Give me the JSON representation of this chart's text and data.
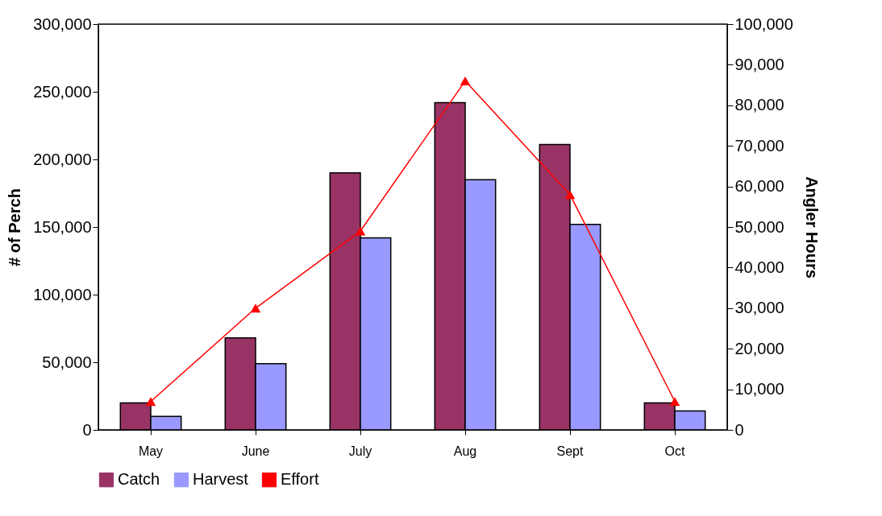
{
  "chart_data": {
    "type": "bar",
    "ylabel": "# of Perch",
    "y2label": "Angler Hours",
    "categories": [
      "May",
      "June",
      "July",
      "Aug",
      "Sept",
      "Oct"
    ],
    "series": [
      {
        "name": "Catch",
        "color": "#993366",
        "values": [
          20000,
          68000,
          190000,
          242000,
          211000,
          20000
        ]
      },
      {
        "name": "Harvest",
        "color": "#9999ff",
        "values": [
          10000,
          49000,
          142000,
          185000,
          152000,
          14000
        ]
      },
      {
        "name": "Effort",
        "type": "line",
        "axis": "y2",
        "color": "#ff0000",
        "values": [
          7000,
          30000,
          49000,
          86000,
          58000,
          7000
        ]
      }
    ],
    "ylim": [
      0,
      300000
    ],
    "yticks": [
      0,
      {
        "value": 50000,
        "label": "50,000"
      },
      {
        "value": 100000,
        "label": "100,000"
      },
      {
        "value": 150000,
        "label": "150,000"
      },
      {
        "value": 200000,
        "label": "200,000"
      },
      {
        "value": 250000,
        "label": "250,000"
      },
      {
        "value": 300000,
        "label": "300,000"
      }
    ],
    "y2lim": [
      0,
      100000
    ],
    "y2ticks": [
      0,
      {
        "value": 10000,
        "label": "10,000"
      },
      {
        "value": 20000,
        "label": "20,000"
      },
      {
        "value": 30000,
        "label": "30,000"
      },
      {
        "value": 40000,
        "label": "40,000"
      },
      {
        "value": 50000,
        "label": "50,000"
      },
      {
        "value": 60000,
        "label": "60,000"
      },
      {
        "value": 70000,
        "label": "70,000"
      },
      {
        "value": 80000,
        "label": "80,000"
      },
      {
        "value": 90000,
        "label": "90,000"
      },
      {
        "value": 100000,
        "label": "100,000"
      }
    ],
    "grid": false,
    "legend": "bottom",
    "marker": "triangle",
    "line_style": "solid"
  }
}
